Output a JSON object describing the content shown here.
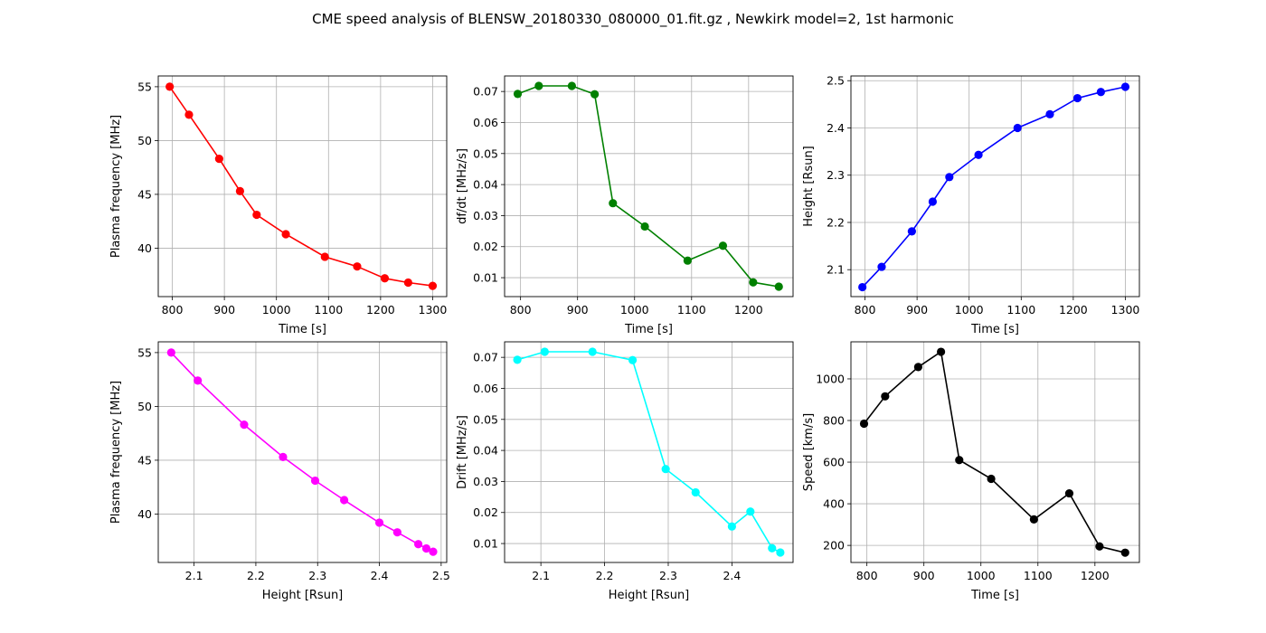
{
  "suptitle": "CME speed analysis of BLENSW_20180330_080000_01.fit.gz , Newkirk model=2, 1st harmonic",
  "chart_data": [
    {
      "type": "line",
      "xlabel": "Time [s]",
      "ylabel": "Plasma frequency [MHz]",
      "color": "#ff0000",
      "marker": "circle",
      "grid": true,
      "xlim": [
        773,
        1327
      ],
      "ylim": [
        35.5,
        56.0
      ],
      "xticks": [
        800,
        900,
        1000,
        1100,
        1200,
        1300
      ],
      "yticks": [
        40,
        45,
        50,
        55
      ],
      "x": [
        795,
        832,
        890,
        930,
        962,
        1018,
        1093,
        1155,
        1208,
        1253,
        1300
      ],
      "y": [
        55.0,
        52.4,
        48.3,
        45.3,
        43.1,
        41.3,
        39.2,
        38.3,
        37.2,
        36.8,
        36.5
      ]
    },
    {
      "type": "line",
      "xlabel": "Time [s]",
      "ylabel": "df/dt [MHz/s]",
      "color": "#008000",
      "marker": "circle",
      "grid": true,
      "xlim": [
        772,
        1278
      ],
      "ylim": [
        0.0039,
        0.075
      ],
      "xticks": [
        800,
        900,
        1000,
        1100,
        1200
      ],
      "yticks": [
        0.01,
        0.02,
        0.03,
        0.04,
        0.05,
        0.06,
        0.07
      ],
      "x": [
        795,
        832,
        890,
        930,
        962,
        1018,
        1093,
        1155,
        1208,
        1253
      ],
      "y": [
        0.0692,
        0.0718,
        0.0718,
        0.0691,
        0.034,
        0.0265,
        0.0155,
        0.0203,
        0.0085,
        0.0071
      ]
    },
    {
      "type": "line",
      "xlabel": "Time [s]",
      "ylabel": "Height [Rsun]",
      "color": "#0000ff",
      "marker": "circle",
      "grid": true,
      "xlim": [
        773,
        1327
      ],
      "ylim": [
        2.043,
        2.51
      ],
      "xticks": [
        800,
        900,
        1000,
        1100,
        1200,
        1300
      ],
      "yticks": [
        2.1,
        2.2,
        2.3,
        2.4,
        2.5
      ],
      "x": [
        795,
        832,
        890,
        930,
        962,
        1018,
        1093,
        1155,
        1208,
        1253,
        1300
      ],
      "y": [
        2.063,
        2.106,
        2.181,
        2.244,
        2.296,
        2.343,
        2.4,
        2.429,
        2.463,
        2.476,
        2.487
      ]
    },
    {
      "type": "line",
      "xlabel": "Height [Rsun]",
      "ylabel": "Plasma frequency [MHz]",
      "color": "#ff00ff",
      "marker": "circle",
      "grid": true,
      "xlim": [
        2.042,
        2.509
      ],
      "ylim": [
        35.5,
        56.0
      ],
      "xticks": [
        2.1,
        2.2,
        2.3,
        2.4,
        2.5
      ],
      "yticks": [
        40,
        45,
        50,
        55
      ],
      "x": [
        2.063,
        2.106,
        2.181,
        2.244,
        2.296,
        2.343,
        2.4,
        2.429,
        2.463,
        2.476,
        2.487
      ],
      "y": [
        55.0,
        52.4,
        48.3,
        45.3,
        43.1,
        41.3,
        39.2,
        38.3,
        37.2,
        36.8,
        36.5
      ]
    },
    {
      "type": "line",
      "xlabel": "Height [Rsun]",
      "ylabel": "Drift [MHz/s]",
      "color": "#00ffff",
      "marker": "circle",
      "grid": true,
      "xlim": [
        2.043,
        2.496
      ],
      "ylim": [
        0.0039,
        0.075
      ],
      "xticks": [
        2.1,
        2.2,
        2.3,
        2.4
      ],
      "yticks": [
        0.01,
        0.02,
        0.03,
        0.04,
        0.05,
        0.06,
        0.07
      ],
      "x": [
        2.063,
        2.106,
        2.181,
        2.244,
        2.296,
        2.343,
        2.4,
        2.429,
        2.463,
        2.476
      ],
      "y": [
        0.0692,
        0.0718,
        0.0718,
        0.0691,
        0.034,
        0.0265,
        0.0155,
        0.0203,
        0.0085,
        0.0071
      ]
    },
    {
      "type": "line",
      "xlabel": "Time [s]",
      "ylabel": "Speed [km/s]",
      "color": "#000000",
      "marker": "circle",
      "grid": true,
      "xlim": [
        772,
        1278
      ],
      "ylim": [
        118,
        1178
      ],
      "xticks": [
        800,
        900,
        1000,
        1100,
        1200
      ],
      "yticks": [
        200,
        400,
        600,
        800,
        1000
      ],
      "x": [
        795,
        832,
        890,
        930,
        962,
        1018,
        1093,
        1155,
        1208,
        1253
      ],
      "y": [
        785,
        916,
        1057,
        1130,
        610,
        520,
        325,
        450,
        195,
        165
      ]
    }
  ]
}
